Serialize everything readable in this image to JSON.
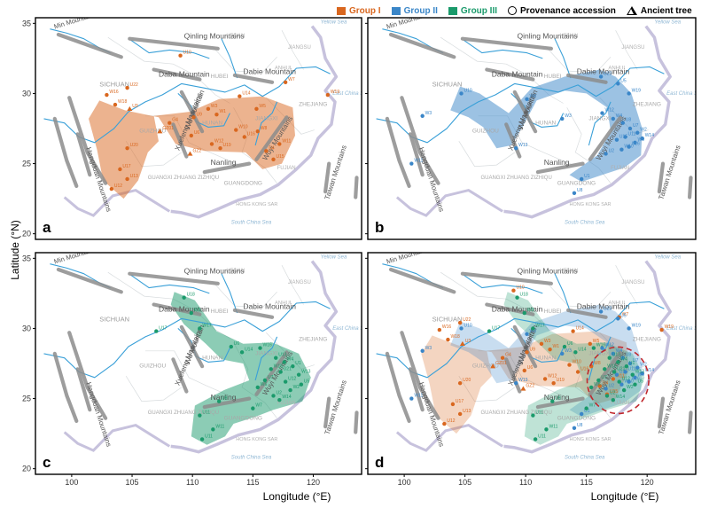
{
  "legend": {
    "items": [
      {
        "label": "Group I",
        "color": "#d9671f",
        "type": "square"
      },
      {
        "label": "Group II",
        "color": "#3a86c8",
        "type": "square"
      },
      {
        "label": "Group III",
        "color": "#1a9a6b",
        "type": "square"
      },
      {
        "label": "Provenance accession",
        "color": "#000000",
        "type": "circle"
      },
      {
        "label": "Ancient tree",
        "color": "#000000",
        "type": "triangle"
      }
    ]
  },
  "axes": {
    "ylabel": "Latitude (°N)",
    "xlabel": "Longitude (°E)",
    "yticks": [
      "35",
      "30",
      "25",
      "20"
    ],
    "xticks": [
      "100",
      "105",
      "110",
      "115",
      "120"
    ]
  },
  "map_labels": {
    "mountains": {
      "qinling": "Qinling Mountains",
      "daba": "Daba Mountain",
      "dabie": "Dabie Mountain",
      "wuyi": "Wuyi Mountains",
      "nanling": "Nanling",
      "wu": "Wu Mountain",
      "xuefeng": "Xuefeng Mountains",
      "taiwan": "Taiwan Mountains",
      "hengduan": "Hengduan Mountains",
      "minshan": "Min Mountain"
    },
    "provinces": {
      "sichuan": "SICHUAN",
      "hubei": "HUBEI",
      "hunan": "HUNAN",
      "guizhou": "GUIZHOU",
      "jiangxi": "JIANGXI",
      "zhejiang": "ZHEJIANG",
      "guangdong": "GUANGDONG",
      "guangxi": "GUANGXI ZHUANG ZIZHIQU",
      "anhui": "ANHUI",
      "jiangsu": "JIANGSU",
      "henan": "HENAN",
      "fujian": "FUJIAN",
      "hongkong": "HONG KONG SAR",
      "south_china_sea": "South China Sea",
      "yellow_sea": "Yellow Sea",
      "east_china_sea": "East China Sea"
    }
  },
  "panels": [
    {
      "letter": "a",
      "groups": [
        "I"
      ]
    },
    {
      "letter": "b",
      "groups": [
        "II"
      ]
    },
    {
      "letter": "c",
      "groups": [
        "III"
      ]
    },
    {
      "letter": "d",
      "groups": [
        "I",
        "II",
        "III"
      ]
    }
  ],
  "point_groups": {
    "I": {
      "color": "#d9671f",
      "points": [
        {
          "lon": 109.0,
          "lat": 32.7,
          "id": "U10"
        },
        {
          "lon": 104.6,
          "lat": 30.4,
          "id": "U22"
        },
        {
          "lon": 102.9,
          "lat": 29.9,
          "id": "W16"
        },
        {
          "lon": 103.6,
          "lat": 29.2,
          "id": "W18"
        },
        {
          "lon": 104.8,
          "lat": 28.9,
          "id": "U3"
        },
        {
          "lon": 110.1,
          "lat": 28.3,
          "id": "U9"
        },
        {
          "lon": 111.3,
          "lat": 28.9,
          "id": "W3"
        },
        {
          "lon": 112.0,
          "lat": 28.5,
          "id": "W1"
        },
        {
          "lon": 113.9,
          "lat": 29.8,
          "id": "U14"
        },
        {
          "lon": 115.3,
          "lat": 28.9,
          "id": "W5"
        },
        {
          "lon": 117.7,
          "lat": 30.8,
          "id": "W7"
        },
        {
          "lon": 121.2,
          "lat": 29.9,
          "id": "W19"
        },
        {
          "lon": 108.1,
          "lat": 27.9,
          "id": "G4"
        },
        {
          "lon": 107.3,
          "lat": 27.3,
          "id": "GZ01"
        },
        {
          "lon": 109.9,
          "lat": 27.0,
          "id": "U6"
        },
        {
          "lon": 111.6,
          "lat": 26.4,
          "id": "W12"
        },
        {
          "lon": 112.3,
          "lat": 26.1,
          "id": "U19"
        },
        {
          "lon": 113.6,
          "lat": 27.4,
          "id": "W10"
        },
        {
          "lon": 114.3,
          "lat": 26.9,
          "id": "U16"
        },
        {
          "lon": 115.4,
          "lat": 27.3,
          "id": "W8"
        },
        {
          "lon": 116.1,
          "lat": 25.9,
          "id": "U4"
        },
        {
          "lon": 116.7,
          "lat": 25.3,
          "id": "U15"
        },
        {
          "lon": 109.8,
          "lat": 25.7,
          "id": "GZ2"
        },
        {
          "lon": 104.6,
          "lat": 26.1,
          "id": "U20"
        },
        {
          "lon": 104.0,
          "lat": 24.6,
          "id": "U17"
        },
        {
          "lon": 104.6,
          "lat": 23.9,
          "id": "U13"
        },
        {
          "lon": 103.3,
          "lat": 23.2,
          "id": "U12"
        },
        {
          "lon": 117.2,
          "lat": 26.4,
          "id": "W11"
        }
      ]
    },
    "II": {
      "color": "#3a86c8",
      "points": [
        {
          "lon": 104.7,
          "lat": 30.0,
          "id": "U10"
        },
        {
          "lon": 113.0,
          "lat": 28.2,
          "id": "W3"
        },
        {
          "lon": 116.2,
          "lat": 31.2,
          "id": "U20"
        },
        {
          "lon": 117.6,
          "lat": 30.7,
          "id": "U5"
        },
        {
          "lon": 118.5,
          "lat": 30.0,
          "id": "W19"
        },
        {
          "lon": 116.3,
          "lat": 28.6,
          "id": "W12"
        },
        {
          "lon": 117.2,
          "lat": 28.2,
          "id": "W4"
        },
        {
          "lon": 118.0,
          "lat": 27.9,
          "id": "U8"
        },
        {
          "lon": 118.6,
          "lat": 27.5,
          "id": "U7"
        },
        {
          "lon": 119.2,
          "lat": 27.2,
          "id": "W2"
        },
        {
          "lon": 118.2,
          "lat": 26.9,
          "id": "U11"
        },
        {
          "lon": 117.5,
          "lat": 26.7,
          "id": "U15"
        },
        {
          "lon": 119.0,
          "lat": 26.5,
          "id": "W9"
        },
        {
          "lon": 118.5,
          "lat": 26.2,
          "id": "U16"
        },
        {
          "lon": 117.9,
          "lat": 26.0,
          "id": "W10"
        },
        {
          "lon": 116.6,
          "lat": 25.7,
          "id": "U2"
        },
        {
          "lon": 119.6,
          "lat": 26.8,
          "id": "W14"
        },
        {
          "lon": 109.2,
          "lat": 26.1,
          "id": "W13"
        },
        {
          "lon": 101.5,
          "lat": 28.4,
          "id": "W3"
        },
        {
          "lon": 114.6,
          "lat": 23.9,
          "id": "U1"
        },
        {
          "lon": 114.0,
          "lat": 22.9,
          "id": "U8"
        },
        {
          "lon": 110.1,
          "lat": 29.6,
          "id": "W8"
        },
        {
          "lon": 100.6,
          "lat": 25.0,
          "id": "W11"
        }
      ]
    },
    "III": {
      "color": "#1a9a6b",
      "points": [
        {
          "lon": 109.3,
          "lat": 32.2,
          "id": "U18"
        },
        {
          "lon": 109.9,
          "lat": 31.1,
          "id": "W9"
        },
        {
          "lon": 107.0,
          "lat": 29.8,
          "id": "U17"
        },
        {
          "lon": 110.6,
          "lat": 30.0,
          "id": "W17"
        },
        {
          "lon": 113.2,
          "lat": 28.7,
          "id": "U6"
        },
        {
          "lon": 114.1,
          "lat": 28.3,
          "id": "U14"
        },
        {
          "lon": 115.6,
          "lat": 28.6,
          "id": "W16"
        },
        {
          "lon": 116.9,
          "lat": 27.9,
          "id": "U13"
        },
        {
          "lon": 117.6,
          "lat": 27.6,
          "id": "W4"
        },
        {
          "lon": 118.3,
          "lat": 27.3,
          "id": "U1"
        },
        {
          "lon": 116.5,
          "lat": 27.1,
          "id": "W15"
        },
        {
          "lon": 117.3,
          "lat": 26.9,
          "id": "U21"
        },
        {
          "lon": 118.8,
          "lat": 26.7,
          "id": "W13"
        },
        {
          "lon": 116.0,
          "lat": 26.3,
          "id": "U7"
        },
        {
          "lon": 117.7,
          "lat": 26.2,
          "id": "U12"
        },
        {
          "lon": 115.4,
          "lat": 25.8,
          "id": "W6"
        },
        {
          "lon": 118.1,
          "lat": 25.6,
          "id": "W2"
        },
        {
          "lon": 116.7,
          "lat": 25.2,
          "id": "U2"
        },
        {
          "lon": 117.2,
          "lat": 24.9,
          "id": "W14"
        },
        {
          "lon": 119.0,
          "lat": 26.0,
          "id": "U5"
        },
        {
          "lon": 112.2,
          "lat": 24.8,
          "id": "U8"
        },
        {
          "lon": 110.6,
          "lat": 23.8,
          "id": "U11"
        },
        {
          "lon": 111.7,
          "lat": 22.8,
          "id": "W11"
        },
        {
          "lon": 110.8,
          "lat": 22.1,
          "id": "U11"
        },
        {
          "lon": 115.0,
          "lat": 24.3,
          "id": "W7"
        }
      ]
    }
  },
  "highlight": {
    "lon": 117.6,
    "lat": 26.3,
    "color": "#c0272d"
  }
}
